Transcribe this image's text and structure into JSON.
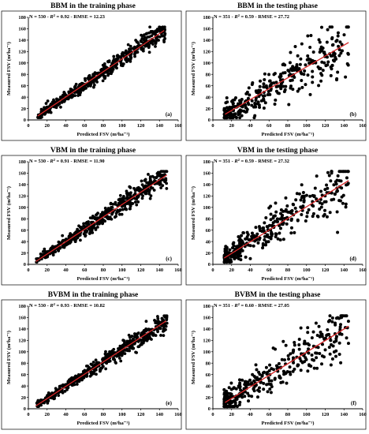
{
  "chart_data": [
    {
      "id": "a",
      "type": "scatter",
      "phase": "training",
      "title": "BBM in the training phase",
      "stats": {
        "N": "530",
        "R2": "0.92",
        "RMSE": "12.23"
      },
      "xlabel": "Predicted FSV (m³ha⁻¹)",
      "ylabel": "Measured FSV (m³ha⁻¹)",
      "xlim": [
        0,
        160
      ],
      "ylim": [
        0,
        180
      ],
      "xticks": [
        0,
        20,
        40,
        60,
        80,
        100,
        120,
        140,
        160
      ],
      "yticks": [
        0,
        20,
        40,
        60,
        80,
        100,
        120,
        140,
        160,
        180
      ],
      "fit_line": {
        "x": [
          10,
          145
        ],
        "y": [
          7,
          157
        ]
      },
      "cloud": {
        "n": 530,
        "x_range": [
          10,
          146
        ],
        "spread": 10,
        "seed": 11
      },
      "panel_label": "(a)"
    },
    {
      "id": "b",
      "type": "scatter",
      "phase": "testing",
      "title": "BBM in the testing phase",
      "stats": {
        "N": "351",
        "R2": "0.59",
        "RMSE": "27.72"
      },
      "xlabel": "Predicted FSV (m³ha⁻¹)",
      "ylabel": "Measured FSV (m³ha⁻¹)",
      "xlim": [
        0,
        160
      ],
      "ylim": [
        0,
        180
      ],
      "xticks": [
        0,
        20,
        40,
        60,
        80,
        100,
        120,
        140,
        160
      ],
      "yticks": [
        0,
        20,
        40,
        60,
        80,
        100,
        120,
        140,
        160,
        180
      ],
      "fit_line": {
        "x": [
          13,
          145
        ],
        "y": [
          10,
          136
        ]
      },
      "cloud": {
        "n": 351,
        "x_range": [
          12,
          145
        ],
        "spread": 26,
        "seed": 23
      },
      "panel_label": "(b)"
    },
    {
      "id": "c",
      "type": "scatter",
      "phase": "training",
      "title": "VBM in the training phase",
      "stats": {
        "N": "530",
        "R2": "0.91",
        "RMSE": "11.90"
      },
      "xlabel": "Predicted FSV (m³ha⁻¹)",
      "ylabel": "Measured FSV (m³ha⁻¹)",
      "xlim": [
        0,
        160
      ],
      "ylim": [
        0,
        180
      ],
      "xticks": [
        0,
        20,
        40,
        60,
        80,
        100,
        120,
        140,
        160
      ],
      "yticks": [
        0,
        20,
        40,
        60,
        80,
        100,
        120,
        140,
        160,
        180
      ],
      "fit_line": {
        "x": [
          8,
          148
        ],
        "y": [
          5,
          157
        ]
      },
      "cloud": {
        "n": 530,
        "x_range": [
          8,
          148
        ],
        "spread": 10,
        "seed": 37
      },
      "panel_label": "(c)"
    },
    {
      "id": "d",
      "type": "scatter",
      "phase": "testing",
      "title": "VBM in the testing phase",
      "stats": {
        "N": "351",
        "R2": "0.59",
        "RMSE": "27.32"
      },
      "xlabel": "Predicted FSV (m³ha⁻¹)",
      "ylabel": "Measured FSV (m³ha⁻¹)",
      "xlim": [
        0,
        160
      ],
      "ylim": [
        0,
        180
      ],
      "xticks": [
        0,
        20,
        40,
        60,
        80,
        100,
        120,
        140,
        160
      ],
      "yticks": [
        0,
        20,
        40,
        60,
        80,
        100,
        120,
        140,
        160,
        180
      ],
      "fit_line": {
        "x": [
          12,
          145
        ],
        "y": [
          11,
          147
        ]
      },
      "cloud": {
        "n": 351,
        "x_range": [
          12,
          145
        ],
        "spread": 26,
        "seed": 41
      },
      "panel_label": "(d)"
    },
    {
      "id": "e",
      "type": "scatter",
      "phase": "training",
      "title": "BVBM in the training phase",
      "stats": {
        "N": "530",
        "R2": "0.93",
        "RMSE": "10.82"
      },
      "xlabel": "Predicted FSV (m³ha⁻¹)",
      "ylabel": "Measured FSV (m³ha⁻¹)",
      "xlim": [
        0,
        160
      ],
      "ylim": [
        0,
        180
      ],
      "xticks": [
        0,
        20,
        40,
        60,
        80,
        100,
        120,
        140,
        160
      ],
      "yticks": [
        0,
        20,
        40,
        60,
        80,
        100,
        120,
        140,
        160,
        180
      ],
      "fit_line": {
        "x": [
          8,
          147
        ],
        "y": [
          5,
          154
        ]
      },
      "cloud": {
        "n": 530,
        "x_range": [
          8,
          148
        ],
        "spread": 9,
        "seed": 53
      },
      "panel_label": "(e)"
    },
    {
      "id": "f",
      "type": "scatter",
      "phase": "testing",
      "title": "BVBM in the testing phase",
      "stats": {
        "N": "351",
        "R2": "0.60",
        "RMSE": "27.05"
      },
      "xlabel": "Predicted FSV (m³ha⁻¹)",
      "ylabel": "Measured FSV (m³ha⁻¹)",
      "xlim": [
        0,
        160
      ],
      "ylim": [
        0,
        180
      ],
      "xticks": [
        0,
        20,
        40,
        60,
        80,
        100,
        120,
        140,
        160
      ],
      "yticks": [
        0,
        20,
        40,
        60,
        80,
        100,
        120,
        140,
        160,
        180
      ],
      "fit_line": {
        "x": [
          13,
          145
        ],
        "y": [
          11,
          145
        ]
      },
      "cloud": {
        "n": 351,
        "x_range": [
          12,
          145
        ],
        "spread": 25,
        "seed": 67
      },
      "panel_label": "(f)"
    }
  ],
  "style": {
    "point_color": "#000000",
    "fit_color": "#d62728"
  }
}
